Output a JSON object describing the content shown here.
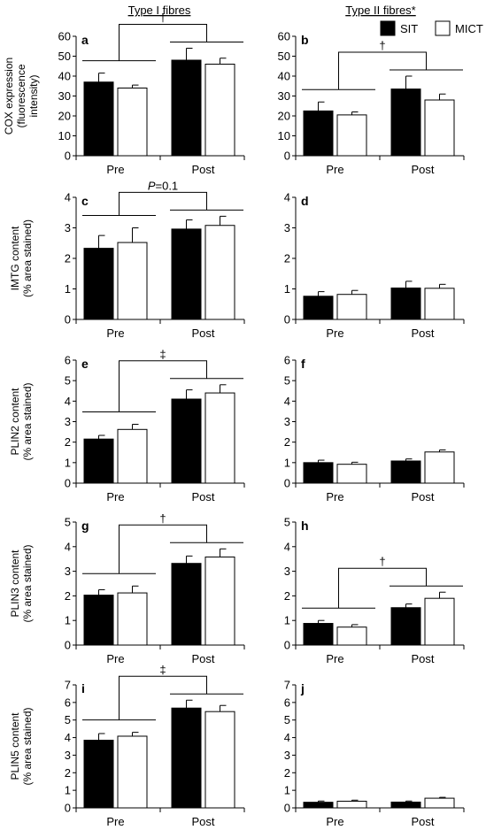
{
  "column_titles": [
    "Type I fibres",
    "Type II fibres*"
  ],
  "legend": [
    {
      "name": "SIT",
      "color": "#000000"
    },
    {
      "name": "MICT",
      "color": "#ffffff"
    }
  ],
  "chart_data": [
    {
      "id": "a",
      "type": "bar",
      "categories": [
        "Pre",
        "Post"
      ],
      "ylabel": [
        "COX expression",
        "(fluorescence",
        "intensity)"
      ],
      "ylim": [
        0,
        60
      ],
      "yticks": [
        0,
        10,
        20,
        30,
        40,
        50,
        60
      ],
      "series": [
        {
          "name": "SIT",
          "values": [
            37,
            48
          ],
          "errors": [
            4.5,
            6
          ]
        },
        {
          "name": "MICT",
          "values": [
            34,
            46
          ],
          "errors": [
            1.5,
            3
          ]
        }
      ],
      "annotation": {
        "symbol": "†",
        "italic_prefix": "",
        "suffix": ""
      }
    },
    {
      "id": "b",
      "type": "bar",
      "categories": [
        "Pre",
        "Post"
      ],
      "ylabel": [],
      "ylim": [
        0,
        60
      ],
      "yticks": [
        0,
        10,
        20,
        30,
        40,
        50,
        60
      ],
      "series": [
        {
          "name": "SIT",
          "values": [
            22.5,
            33.5
          ],
          "errors": [
            4.5,
            6.5
          ]
        },
        {
          "name": "MICT",
          "values": [
            20.5,
            28
          ],
          "errors": [
            1.5,
            3
          ]
        }
      ],
      "annotation": {
        "symbol": "†",
        "italic_prefix": "",
        "suffix": ""
      }
    },
    {
      "id": "c",
      "type": "bar",
      "categories": [
        "Pre",
        "Post"
      ],
      "ylabel": [
        "IMTG content",
        "(% area stained)"
      ],
      "ylim": [
        0,
        4
      ],
      "yticks": [
        0,
        1,
        2,
        3,
        4
      ],
      "series": [
        {
          "name": "SIT",
          "values": [
            2.33,
            2.96
          ],
          "errors": [
            0.42,
            0.3
          ]
        },
        {
          "name": "MICT",
          "values": [
            2.52,
            3.08
          ],
          "errors": [
            0.48,
            0.3
          ]
        }
      ],
      "annotation": {
        "symbol": "",
        "italic_prefix": "P",
        "suffix": "=0.1"
      }
    },
    {
      "id": "d",
      "type": "bar",
      "categories": [
        "Pre",
        "Post"
      ],
      "ylabel": [],
      "ylim": [
        0,
        4
      ],
      "yticks": [
        0,
        1,
        2,
        3,
        4
      ],
      "series": [
        {
          "name": "SIT",
          "values": [
            0.76,
            1.03
          ],
          "errors": [
            0.15,
            0.22
          ]
        },
        {
          "name": "MICT",
          "values": [
            0.82,
            1.02
          ],
          "errors": [
            0.13,
            0.13
          ]
        }
      ],
      "annotation": null
    },
    {
      "id": "e",
      "type": "bar",
      "categories": [
        "Pre",
        "Post"
      ],
      "ylabel": [
        "PLIN2 content",
        "(% area stained)"
      ],
      "ylim": [
        0,
        6
      ],
      "yticks": [
        0,
        1,
        2,
        3,
        4,
        5,
        6
      ],
      "series": [
        {
          "name": "SIT",
          "values": [
            2.15,
            4.1
          ],
          "errors": [
            0.18,
            0.45
          ]
        },
        {
          "name": "MICT",
          "values": [
            2.62,
            4.4
          ],
          "errors": [
            0.25,
            0.4
          ]
        }
      ],
      "annotation": {
        "symbol": "‡",
        "italic_prefix": "",
        "suffix": ""
      }
    },
    {
      "id": "f",
      "type": "bar",
      "categories": [
        "Pre",
        "Post"
      ],
      "ylabel": [],
      "ylim": [
        0,
        6
      ],
      "yticks": [
        0,
        1,
        2,
        3,
        4,
        5,
        6
      ],
      "series": [
        {
          "name": "SIT",
          "values": [
            1.0,
            1.08
          ],
          "errors": [
            0.12,
            0.1
          ]
        },
        {
          "name": "MICT",
          "values": [
            0.92,
            1.52
          ],
          "errors": [
            0.1,
            0.1
          ]
        }
      ],
      "annotation": null
    },
    {
      "id": "g",
      "type": "bar",
      "categories": [
        "Pre",
        "Post"
      ],
      "ylabel": [
        "PLIN3 content",
        "(% area stained)"
      ],
      "ylim": [
        0,
        5
      ],
      "yticks": [
        0,
        1,
        2,
        3,
        4,
        5
      ],
      "series": [
        {
          "name": "SIT",
          "values": [
            2.03,
            3.32
          ],
          "errors": [
            0.22,
            0.3
          ]
        },
        {
          "name": "MICT",
          "values": [
            2.12,
            3.58
          ],
          "errors": [
            0.28,
            0.33
          ]
        }
      ],
      "annotation": {
        "symbol": "†",
        "italic_prefix": "",
        "suffix": ""
      }
    },
    {
      "id": "h",
      "type": "bar",
      "categories": [
        "Pre",
        "Post"
      ],
      "ylabel": [],
      "ylim": [
        0,
        5
      ],
      "yticks": [
        0,
        1,
        2,
        3,
        4,
        5
      ],
      "series": [
        {
          "name": "SIT",
          "values": [
            0.88,
            1.52
          ],
          "errors": [
            0.12,
            0.15
          ]
        },
        {
          "name": "MICT",
          "values": [
            0.73,
            1.9
          ],
          "errors": [
            0.1,
            0.25
          ]
        }
      ],
      "annotation": {
        "symbol": "†",
        "italic_prefix": "",
        "suffix": ""
      }
    },
    {
      "id": "i",
      "type": "bar",
      "categories": [
        "Pre",
        "Post"
      ],
      "ylabel": [
        "PLIN5 content",
        "(% area stained)"
      ],
      "ylim": [
        0,
        7
      ],
      "yticks": [
        0,
        1,
        2,
        3,
        4,
        5,
        6,
        7
      ],
      "series": [
        {
          "name": "SIT",
          "values": [
            3.85,
            5.68
          ],
          "errors": [
            0.38,
            0.45
          ]
        },
        {
          "name": "MICT",
          "values": [
            4.08,
            5.48
          ],
          "errors": [
            0.22,
            0.35
          ]
        }
      ],
      "annotation": {
        "symbol": "‡",
        "italic_prefix": "",
        "suffix": ""
      }
    },
    {
      "id": "j",
      "type": "bar",
      "categories": [
        "Pre",
        "Post"
      ],
      "ylabel": [],
      "ylim": [
        0,
        7
      ],
      "yticks": [
        0,
        1,
        2,
        3,
        4,
        5,
        6,
        7
      ],
      "series": [
        {
          "name": "SIT",
          "values": [
            0.32,
            0.33
          ],
          "errors": [
            0.07,
            0.06
          ]
        },
        {
          "name": "MICT",
          "values": [
            0.38,
            0.55
          ],
          "errors": [
            0.06,
            0.05
          ]
        }
      ],
      "annotation": null
    }
  ]
}
